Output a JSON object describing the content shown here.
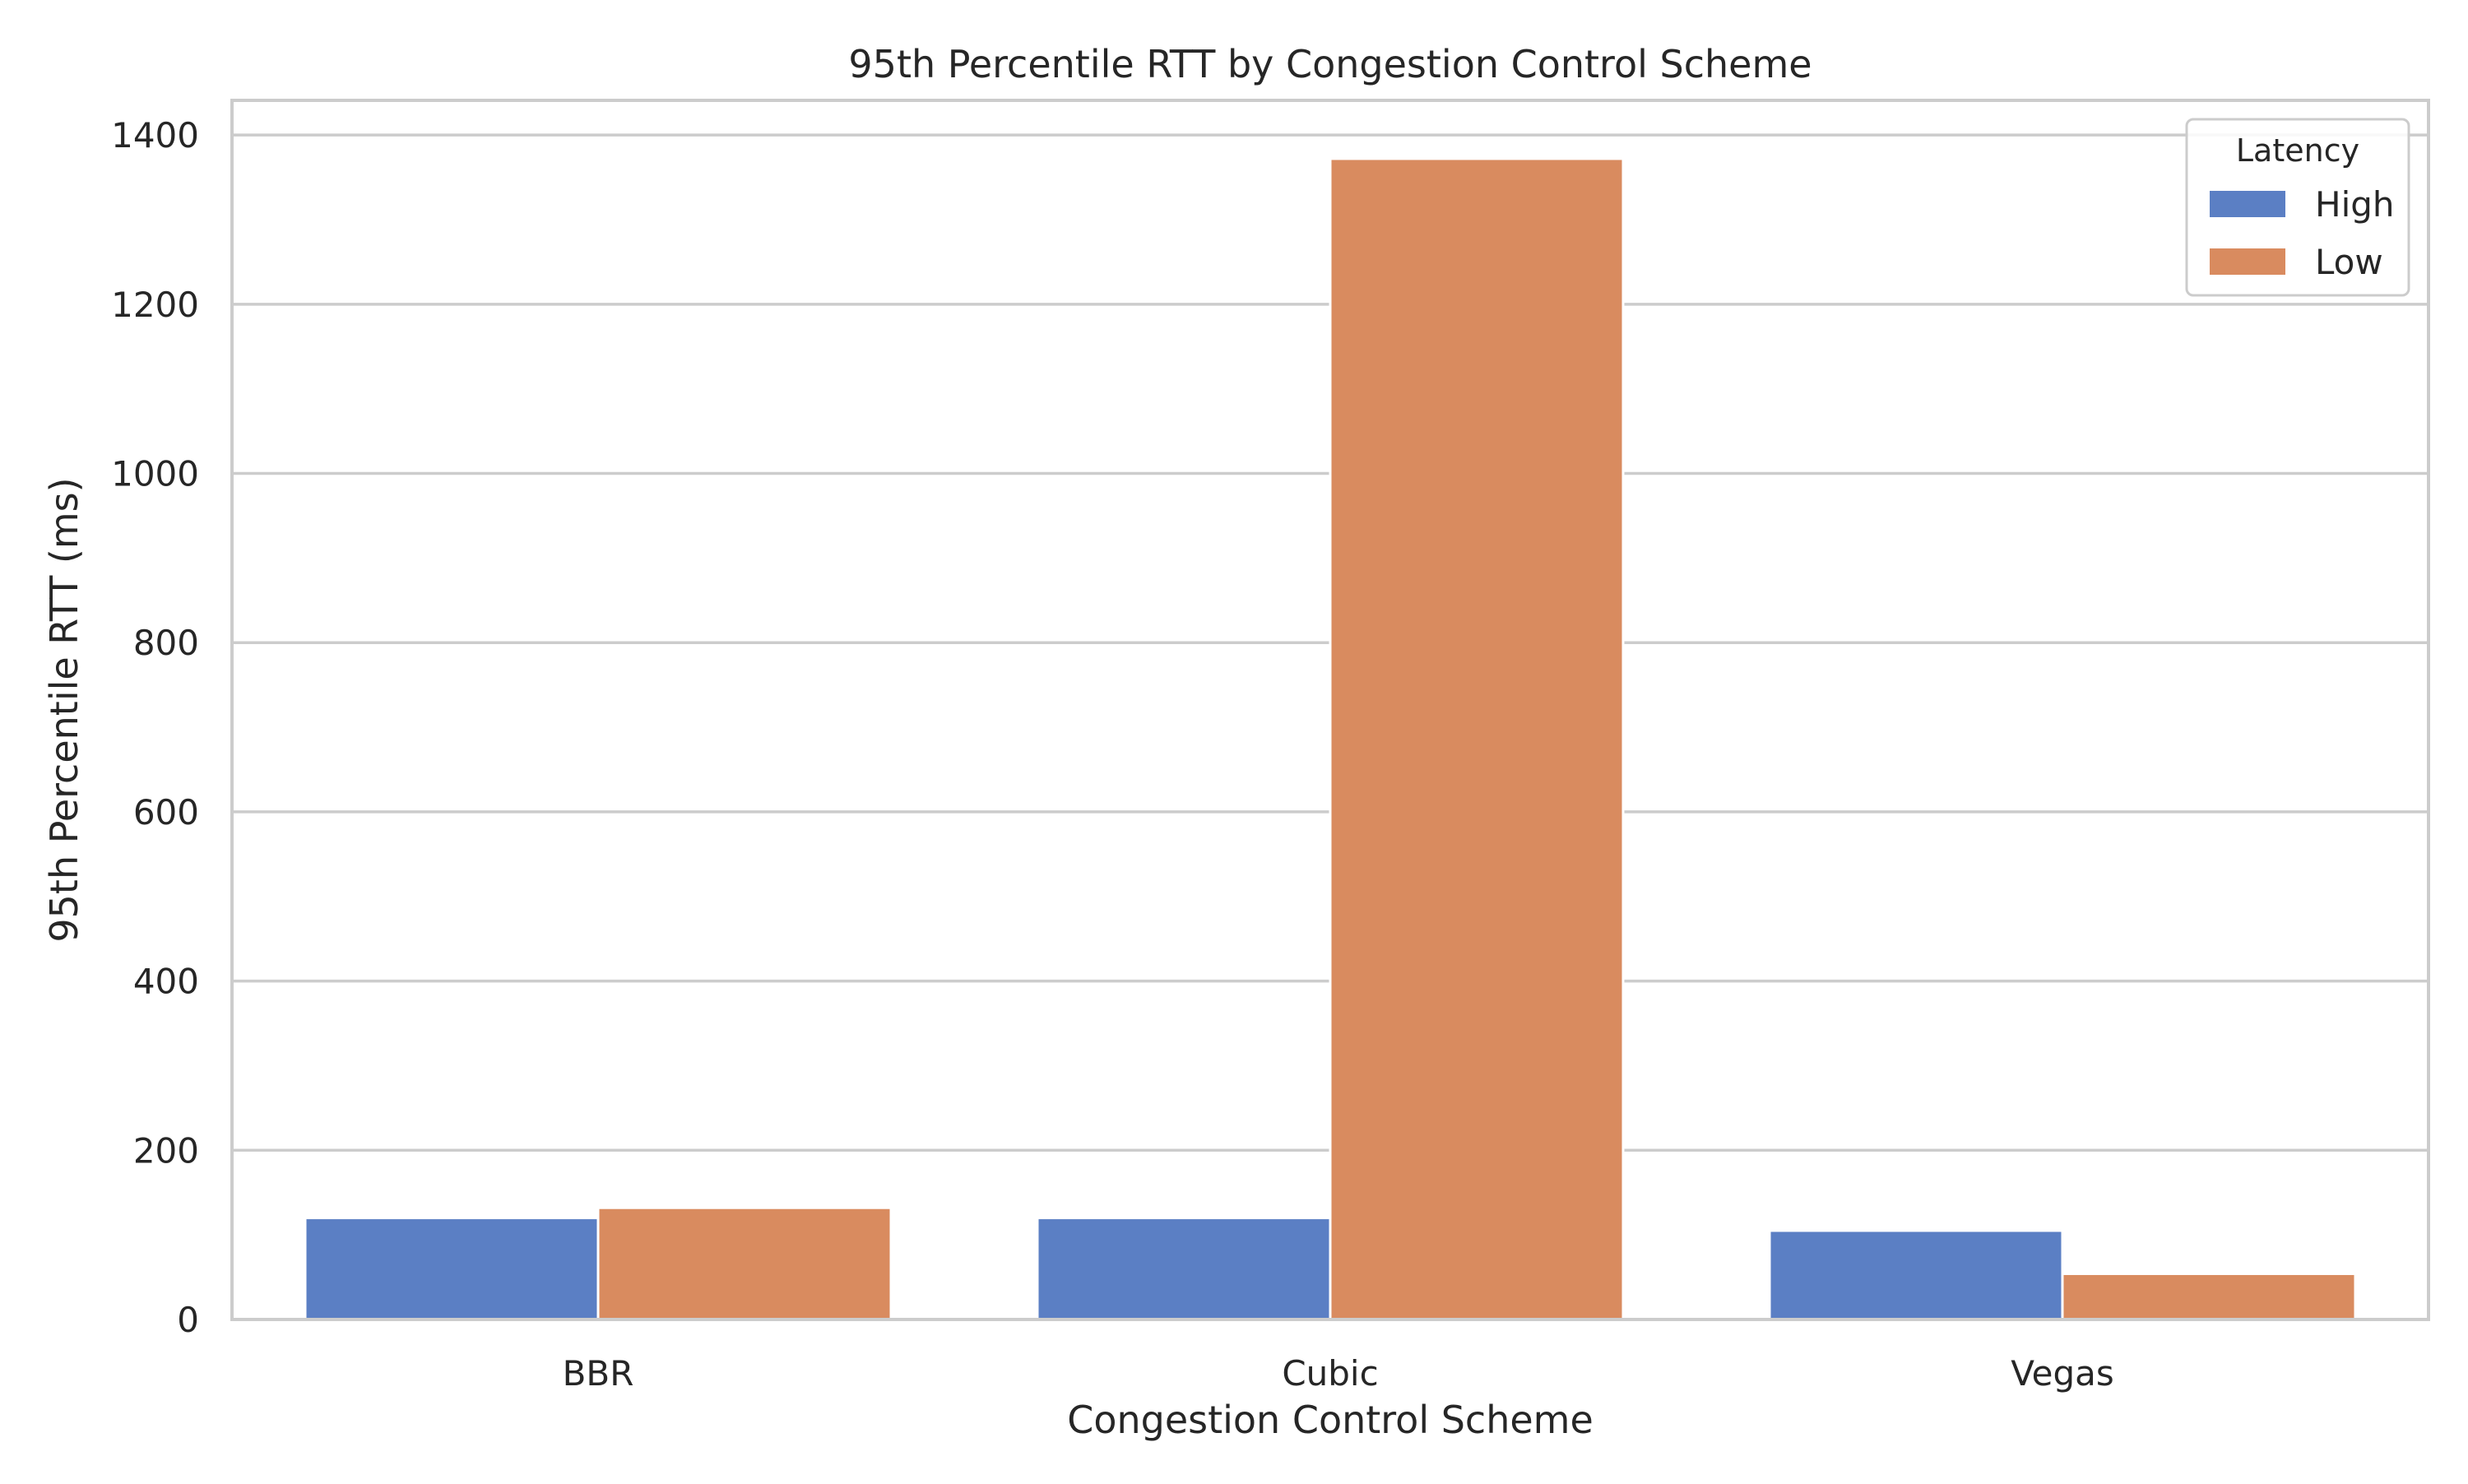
{
  "chart_data": {
    "type": "bar",
    "title": "95th Percentile RTT by Congestion Control Scheme",
    "xlabel": "Congestion Control Scheme",
    "ylabel": "95th Percentile RTT (ms)",
    "categories": [
      "BBR",
      "Cubic",
      "Vegas"
    ],
    "series": [
      {
        "name": "High",
        "color": "#5b7fc4",
        "values": [
          120,
          120,
          105
        ]
      },
      {
        "name": "Low",
        "color": "#d98b5f",
        "values": [
          132,
          1372,
          54
        ]
      }
    ],
    "ylim": [
      0,
      1441
    ],
    "yticks": [
      0,
      200,
      400,
      600,
      800,
      1000,
      1200,
      1400
    ],
    "grid": true,
    "legend": {
      "title": "Latency",
      "placement": "top-right"
    }
  }
}
